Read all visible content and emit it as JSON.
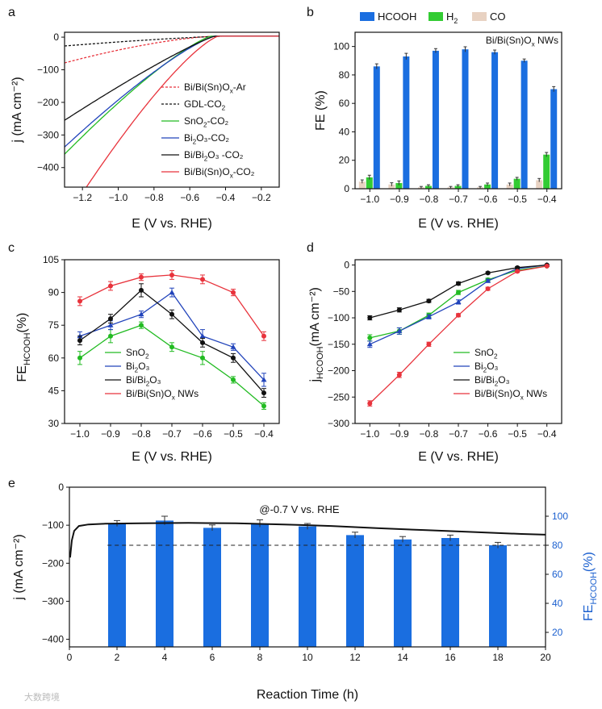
{
  "panels": {
    "a": {
      "letter": "a",
      "type": "line",
      "xlabel": "E (V vs. RHE)",
      "ylabel": "j (mA cm⁻²)",
      "xlim": [
        -1.3,
        -0.1
      ],
      "ylim": [
        -460,
        15
      ],
      "xticks": [
        -1.2,
        -1.0,
        -0.8,
        -0.6,
        -0.4,
        -0.2
      ],
      "yticks": [
        0,
        -100,
        -200,
        -300,
        -400
      ],
      "series": [
        {
          "name": "Bi/Bi(Sn)Ox-Ar",
          "label_main": "Bi/Bi(Sn)O",
          "label_sub": "x",
          "label_tail": "-Ar",
          "color": "#e8333c",
          "dash": true,
          "onset": -0.45,
          "exponent": 1.5,
          "scale": 82
        },
        {
          "name": "GDL-CO2",
          "label_main": "GDL-CO",
          "label_sub": "2",
          "label_tail": "",
          "color": "#111111",
          "dash": true,
          "onset": -0.4,
          "exponent": 1.3,
          "scale": 30
        },
        {
          "name": "SnO2-CO2",
          "label_main": "SnO",
          "label_sub": "2",
          "label_tail": "-CO₂",
          "color": "#22bb22",
          "dash": false,
          "onset": -0.48,
          "exponent": 1.25,
          "scale": 362
        },
        {
          "name": "Bi2O3-CO2",
          "label_main": "Bi",
          "label_sub": "2",
          "label_tail": "O₃-CO₂",
          "color": "#2244bb",
          "dash": false,
          "onset": -0.46,
          "exponent": 1.25,
          "scale": 340
        },
        {
          "name": "Bi/Bi2O3-CO2",
          "label_main": "Bi/Bi",
          "label_sub": "2",
          "label_tail": "O₃ -CO₂",
          "color": "#111111",
          "dash": false,
          "onset": -0.46,
          "exponent": 1.15,
          "scale": 258
        },
        {
          "name": "Bi/Bi(Sn)Ox-CO2",
          "label_main": "Bi/Bi(Sn)O",
          "label_sub": "x",
          "label_tail": "-CO₂",
          "color": "#e8333c",
          "dash": false,
          "onset": -0.44,
          "exponent": 1.3,
          "scale": 565
        }
      ]
    },
    "b": {
      "letter": "b",
      "type": "bar",
      "xlabel": "E (V vs. RHE)",
      "ylabel": "FE (%)",
      "ylim": [
        0,
        110
      ],
      "yticks": [
        0,
        20,
        40,
        60,
        80,
        100
      ],
      "annotation": "Bi/Bi(Sn)Ox NWs",
      "categories": [
        "-1.0",
        "-0.9",
        "-0.8",
        "-0.7",
        "-0.6",
        "-0.5",
        "-0.4"
      ],
      "series": [
        {
          "name": "CO",
          "color": "#e8d2c2",
          "values": [
            5,
            3,
            1,
            1,
            1,
            3,
            6
          ],
          "errors": [
            1.2,
            1.2,
            0.6,
            0.6,
            0.6,
            1.0,
            1.2
          ]
        },
        {
          "name": "H2",
          "color": "#33cc33",
          "values": [
            8,
            4,
            2,
            2,
            3,
            7,
            24
          ],
          "errors": [
            1.5,
            1.5,
            0.8,
            0.8,
            1.0,
            1.0,
            1.5
          ]
        },
        {
          "name": "HCOOH",
          "color": "#1a6ee0",
          "values": [
            86,
            93,
            97,
            98,
            96,
            90,
            70
          ],
          "errors": [
            1.8,
            2.2,
            1.5,
            1.8,
            1.5,
            1.2,
            1.8
          ]
        }
      ],
      "legend": {
        "hcooh": "HCOOH",
        "h2_main": "H",
        "h2_sub": "2",
        "co": "CO"
      }
    },
    "c": {
      "letter": "c",
      "type": "line",
      "xlabel": "E (V vs. RHE)",
      "ylabel_main": "FE",
      "ylabel_sub": "HCOOH",
      "ylabel_tail": "(%)",
      "ylim": [
        30,
        105
      ],
      "yticks": [
        30,
        45,
        60,
        75,
        90,
        105
      ],
      "x": [
        -1.0,
        -0.9,
        -0.8,
        -0.7,
        -0.6,
        -0.5,
        -0.4
      ],
      "xticks": [
        -1.0,
        -0.9,
        -0.8,
        -0.7,
        -0.6,
        -0.5,
        -0.4
      ],
      "series": [
        {
          "name": "SnO2",
          "label_main": "SnO",
          "label_sub": "2",
          "label_tail": "",
          "color": "#22bb22",
          "values": [
            60,
            70,
            75,
            65,
            60,
            50,
            38
          ],
          "errors": [
            3,
            3,
            1.5,
            2,
            3,
            1.5,
            1.5
          ]
        },
        {
          "name": "Bi2O3",
          "label_main": "Bi",
          "label_sub": "2",
          "label_tail": "O₃",
          "color": "#2244bb",
          "values": [
            70,
            75,
            80,
            90,
            70,
            65,
            50
          ],
          "errors": [
            2,
            2,
            1.5,
            2,
            3,
            1.5,
            3
          ]
        },
        {
          "name": "Bi/Bi2O3",
          "label_main": "Bi/Bi",
          "label_sub": "2",
          "label_tail": "O₃",
          "color": "#111111",
          "values": [
            68,
            78,
            91,
            80,
            67,
            60,
            44
          ],
          "errors": [
            2,
            2,
            3,
            2,
            2,
            2,
            2
          ]
        },
        {
          "name": "Bi/Bi(Sn)Ox NWs",
          "label_main": "Bi/Bi(Sn)O",
          "label_sub": "x",
          "label_tail": " NWs",
          "color": "#e8333c",
          "values": [
            86,
            93,
            97,
            98,
            96,
            90,
            70
          ],
          "errors": [
            2,
            2,
            1.5,
            2,
            2,
            1.5,
            2
          ]
        }
      ]
    },
    "d": {
      "letter": "d",
      "type": "line",
      "xlabel": "E (V vs. RHE)",
      "ylabel_main": "j",
      "ylabel_sub": "HCOOH",
      "ylabel_tail": "(mA cm⁻²)",
      "ylim": [
        -300,
        10
      ],
      "yticks": [
        0,
        -50,
        -100,
        -150,
        -200,
        -250,
        -300
      ],
      "x": [
        -1.0,
        -0.9,
        -0.8,
        -0.7,
        -0.6,
        -0.5,
        -0.4
      ],
      "xticks": [
        -1.0,
        -0.9,
        -0.8,
        -0.7,
        -0.6,
        -0.5,
        -0.4
      ],
      "series": [
        {
          "name": "SnO2",
          "label_main": "SnO",
          "label_sub": "2",
          "label_tail": "",
          "color": "#22bb22",
          "values": [
            -138,
            -125,
            -95,
            -52,
            -28,
            -10,
            -2
          ],
          "errors": [
            6,
            6,
            4,
            4,
            3,
            2,
            1
          ]
        },
        {
          "name": "Bi2O3",
          "label_main": "Bi",
          "label_sub": "2",
          "label_tail": "O₃",
          "color": "#2244bb",
          "values": [
            -150,
            -125,
            -98,
            -70,
            -30,
            -7,
            0
          ],
          "errors": [
            6,
            6,
            4,
            4,
            3,
            2,
            1
          ]
        },
        {
          "name": "Bi/Bi2O3",
          "label_main": "Bi/Bi",
          "label_sub": "2",
          "label_tail": "O₃",
          "color": "#111111",
          "values": [
            -100,
            -85,
            -68,
            -35,
            -15,
            -5,
            0
          ],
          "errors": [
            4,
            4,
            3,
            3,
            2,
            2,
            1
          ]
        },
        {
          "name": "Bi/Bi(Sn)Ox NWs",
          "label_main": "Bi/Bi(Sn)O",
          "label_sub": "x",
          "label_tail": " NWs",
          "color": "#e8333c",
          "values": [
            -262,
            -208,
            -150,
            -95,
            -45,
            -12,
            -2
          ],
          "errors": [
            5,
            5,
            4,
            3,
            3,
            2,
            1
          ]
        }
      ]
    },
    "e": {
      "letter": "e",
      "type": "bar+line",
      "xlabel": "Reaction Time (h)",
      "ylabel": "j (mA cm⁻²)",
      "y2label_main": "FE",
      "y2label_sub": "HCOOH",
      "y2label_tail": "(%)",
      "annotation": "@-0.7 V vs. RHE",
      "xlim": [
        0,
        20
      ],
      "xticks": [
        0,
        2,
        4,
        6,
        8,
        10,
        12,
        14,
        16,
        18,
        20
      ],
      "ylim": [
        -420,
        0
      ],
      "yticks": [
        0,
        -100,
        -200,
        -300,
        -400
      ],
      "y2lim": [
        10,
        120
      ],
      "y2ticks": [
        20,
        40,
        60,
        80,
        100
      ],
      "reference_line": 80,
      "bar_color": "#1a6ee0",
      "bar_x": [
        2,
        4,
        6,
        8,
        10,
        12,
        14,
        16,
        18
      ],
      "bar_values": [
        95,
        97,
        92,
        95,
        93,
        87,
        84,
        85,
        80
      ],
      "bar_errors": [
        2,
        3,
        2,
        2.5,
        2,
        2,
        2,
        2,
        2
      ],
      "current_points": [
        [
          0.03,
          -185
        ],
        [
          0.1,
          -140
        ],
        [
          0.2,
          -115
        ],
        [
          0.4,
          -102
        ],
        [
          0.8,
          -98
        ],
        [
          1.5,
          -96
        ],
        [
          3,
          -95
        ],
        [
          5,
          -94
        ],
        [
          7,
          -95
        ],
        [
          9,
          -98
        ],
        [
          11,
          -102
        ],
        [
          13,
          -108
        ],
        [
          15,
          -113
        ],
        [
          17,
          -118
        ],
        [
          19,
          -123
        ],
        [
          20,
          -125
        ]
      ],
      "current_color": "#111111"
    }
  },
  "watermark": "大数跨境"
}
